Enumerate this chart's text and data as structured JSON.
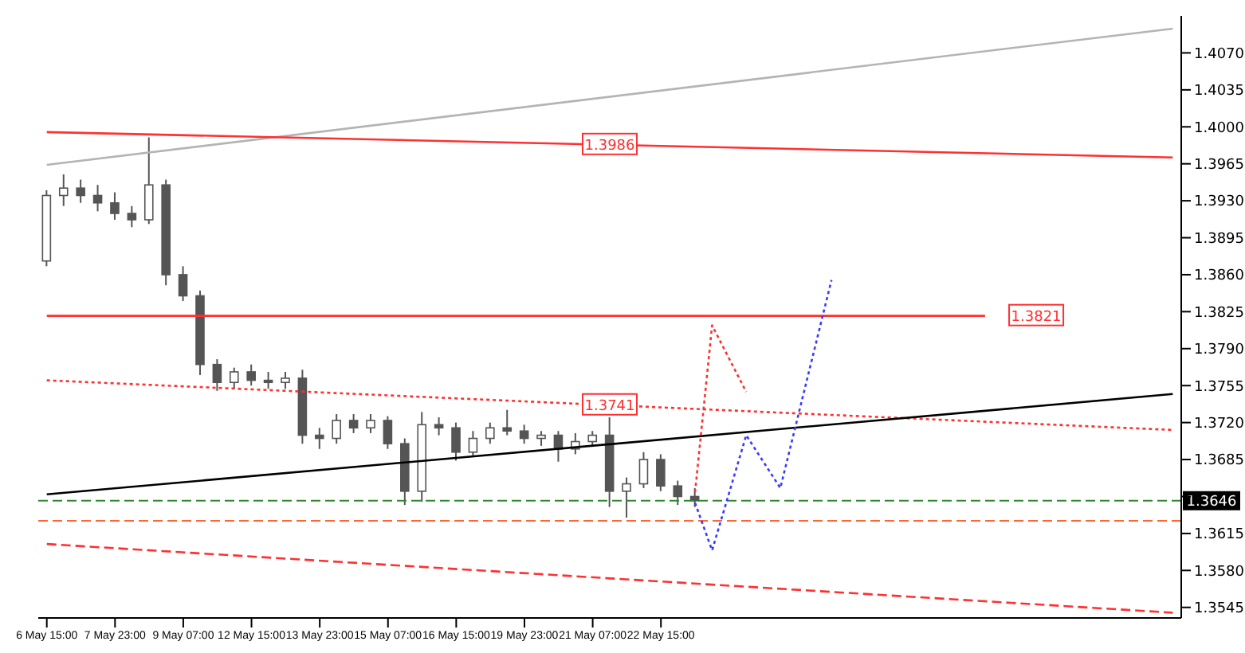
{
  "chart_data": {
    "type": "candlestick",
    "color": "#555555",
    "categories": [
      "6 May 15:00",
      null,
      null,
      null,
      "7 May 23:00",
      null,
      null,
      null,
      "9 May 07:00",
      null,
      null,
      null,
      "12 May 15:00",
      null,
      null,
      null,
      "13 May 23:00",
      null,
      null,
      null,
      "15 May 07:00",
      null,
      null,
      null,
      "16 May 15:00",
      null,
      null,
      null,
      "19 May 23:00",
      null,
      null,
      null,
      "21 May 07:00",
      null,
      null,
      null,
      "22 May 15:00",
      null,
      null,
      null,
      null,
      null,
      null,
      null,
      null,
      null,
      null,
      null,
      null,
      null,
      null,
      null,
      null,
      null,
      null,
      null,
      null,
      null,
      null,
      null,
      null,
      null,
      null,
      null,
      null,
      null,
      null
    ],
    "ohlc": [
      [
        1.3873,
        1.394,
        1.3868,
        1.3935
      ],
      [
        1.3935,
        1.3955,
        1.3925,
        1.3942
      ],
      [
        1.3942,
        1.395,
        1.3928,
        1.3935
      ],
      [
        1.3935,
        1.3945,
        1.392,
        1.3928
      ],
      [
        1.3928,
        1.3938,
        1.3912,
        1.3918
      ],
      [
        1.3918,
        1.3925,
        1.3905,
        1.3912
      ],
      [
        1.3912,
        1.399,
        1.3908,
        1.3945
      ],
      [
        1.3945,
        1.395,
        1.385,
        1.386
      ],
      [
        1.386,
        1.3868,
        1.3835,
        1.384
      ],
      [
        1.384,
        1.3845,
        1.3765,
        1.3775
      ],
      [
        1.3775,
        1.378,
        1.375,
        1.3758
      ],
      [
        1.3758,
        1.3772,
        1.3752,
        1.3768
      ],
      [
        1.3768,
        1.3775,
        1.3755,
        1.376
      ],
      [
        1.376,
        1.3768,
        1.3752,
        1.3758
      ],
      [
        1.3758,
        1.3768,
        1.3752,
        1.3762
      ],
      [
        1.3762,
        1.377,
        1.37,
        1.3708
      ],
      [
        1.3708,
        1.3715,
        1.3695,
        1.3705
      ],
      [
        1.3705,
        1.3728,
        1.37,
        1.3722
      ],
      [
        1.3722,
        1.3728,
        1.371,
        1.3715
      ],
      [
        1.3715,
        1.3728,
        1.371,
        1.3722
      ],
      [
        1.3722,
        1.3726,
        1.3695,
        1.37
      ],
      [
        1.37,
        1.3705,
        1.3642,
        1.3655
      ],
      [
        1.3655,
        1.373,
        1.3645,
        1.3718
      ],
      [
        1.3718,
        1.3725,
        1.3708,
        1.3715
      ],
      [
        1.3715,
        1.372,
        1.3684,
        1.3692
      ],
      [
        1.3692,
        1.3712,
        1.3688,
        1.3705
      ],
      [
        1.3705,
        1.372,
        1.37,
        1.3715
      ],
      [
        1.3715,
        1.3732,
        1.3708,
        1.3712
      ],
      [
        1.3712,
        1.3718,
        1.37,
        1.3705
      ],
      [
        1.3705,
        1.3712,
        1.3698,
        1.3708
      ],
      [
        1.3708,
        1.3712,
        1.3683,
        1.3695
      ],
      [
        1.3695,
        1.371,
        1.369,
        1.3702
      ],
      [
        1.3702,
        1.3712,
        1.3698,
        1.3708
      ],
      [
        1.3708,
        1.3725,
        1.364,
        1.3655
      ],
      [
        1.3655,
        1.3668,
        1.363,
        1.3662
      ],
      [
        1.3662,
        1.3692,
        1.3658,
        1.3685
      ],
      [
        1.3685,
        1.369,
        1.3655,
        1.366
      ],
      [
        1.366,
        1.3665,
        1.3642,
        1.365
      ],
      [
        1.365,
        1.3658,
        1.364,
        1.3646
      ],
      null,
      null,
      null,
      null,
      null,
      null,
      null,
      null,
      null,
      null,
      null,
      null,
      null,
      null,
      null,
      null,
      null,
      null,
      null,
      null,
      null,
      null,
      null,
      null,
      null,
      null,
      null,
      null
    ],
    "series": [
      {
        "type": "line",
        "color": "#b4b4b4",
        "values": [
          1.3964,
          null,
          null,
          null,
          null,
          null,
          null,
          null,
          null,
          null,
          null,
          null,
          null,
          null,
          null,
          null,
          null,
          null,
          null,
          null,
          null,
          null,
          null,
          null,
          null,
          null,
          null,
          null,
          null,
          null,
          null,
          null,
          null,
          null,
          null,
          null,
          null,
          null,
          null,
          null,
          null,
          null,
          null,
          null,
          null,
          null,
          null,
          null,
          null,
          null,
          null,
          null,
          null,
          null,
          null,
          null,
          null,
          null,
          null,
          null,
          null,
          null,
          null,
          null,
          null,
          null,
          1.4093
        ]
      },
      {
        "type": "line",
        "name": "1.3986",
        "color": "#ff3030",
        "values": [
          1.3995,
          null,
          null,
          null,
          null,
          null,
          null,
          null,
          null,
          null,
          null,
          null,
          null,
          null,
          null,
          null,
          null,
          null,
          null,
          null,
          null,
          null,
          null,
          null,
          null,
          null,
          null,
          null,
          null,
          null,
          null,
          null,
          null,
          null,
          null,
          null,
          null,
          null,
          null,
          null,
          null,
          null,
          null,
          null,
          null,
          null,
          null,
          null,
          null,
          null,
          null,
          null,
          null,
          null,
          null,
          null,
          null,
          null,
          null,
          null,
          null,
          null,
          null,
          null,
          null,
          null,
          1.3971
        ]
      },
      {
        "type": "line",
        "name": "1.3821",
        "color": "#ff3030",
        "values": [
          1.3821,
          null,
          null,
          null,
          null,
          null,
          null,
          null,
          null,
          null,
          null,
          null,
          null,
          null,
          null,
          null,
          null,
          null,
          null,
          null,
          null,
          null,
          null,
          null,
          null,
          null,
          null,
          null,
          null,
          null,
          null,
          null,
          null,
          null,
          null,
          null,
          null,
          null,
          null,
          null,
          null,
          null,
          null,
          null,
          null,
          null,
          null,
          null,
          null,
          null,
          null,
          null,
          null,
          null,
          null,
          1.3821,
          null,
          null,
          null,
          null,
          null,
          null,
          null,
          null,
          null,
          null,
          null
        ]
      },
      {
        "type": "line",
        "name": "1.3741",
        "color": "#ff3030",
        "line_style": "dotted",
        "values": [
          1.376,
          null,
          null,
          null,
          null,
          null,
          null,
          null,
          null,
          null,
          null,
          null,
          null,
          null,
          null,
          null,
          null,
          null,
          null,
          null,
          null,
          null,
          null,
          null,
          null,
          null,
          null,
          null,
          null,
          null,
          null,
          null,
          null,
          null,
          null,
          null,
          null,
          null,
          null,
          null,
          null,
          null,
          null,
          null,
          null,
          null,
          null,
          null,
          null,
          null,
          null,
          null,
          null,
          null,
          null,
          null,
          null,
          null,
          null,
          null,
          null,
          null,
          null,
          null,
          null,
          null,
          1.3713
        ]
      },
      {
        "type": "line",
        "color": "#000000",
        "values": [
          1.3652,
          null,
          null,
          null,
          null,
          null,
          null,
          null,
          null,
          null,
          null,
          null,
          null,
          null,
          null,
          null,
          null,
          null,
          null,
          null,
          null,
          null,
          null,
          null,
          null,
          null,
          null,
          null,
          null,
          null,
          null,
          null,
          null,
          null,
          null,
          null,
          null,
          null,
          null,
          null,
          null,
          null,
          null,
          null,
          null,
          null,
          null,
          null,
          null,
          null,
          null,
          null,
          null,
          null,
          null,
          null,
          null,
          null,
          null,
          null,
          null,
          null,
          null,
          null,
          null,
          null,
          1.3747
        ]
      },
      {
        "type": "line",
        "color": "#ff3030",
        "line_style": "dashed",
        "values": [
          1.3605,
          null,
          null,
          null,
          null,
          null,
          null,
          null,
          null,
          null,
          null,
          null,
          null,
          null,
          null,
          null,
          null,
          null,
          null,
          null,
          null,
          null,
          null,
          null,
          null,
          null,
          null,
          null,
          null,
          null,
          null,
          null,
          null,
          null,
          null,
          null,
          null,
          null,
          null,
          null,
          null,
          null,
          null,
          null,
          null,
          null,
          null,
          null,
          null,
          null,
          null,
          null,
          null,
          null,
          null,
          null,
          null,
          null,
          null,
          null,
          null,
          null,
          null,
          null,
          null,
          null,
          1.354
        ]
      },
      {
        "type": "line",
        "color": "#ff3030",
        "line_style": "dotted",
        "values": [
          null,
          null,
          null,
          null,
          null,
          null,
          null,
          null,
          null,
          null,
          null,
          null,
          null,
          null,
          null,
          null,
          null,
          null,
          null,
          null,
          null,
          null,
          null,
          null,
          null,
          null,
          null,
          null,
          null,
          null,
          null,
          null,
          null,
          null,
          null,
          null,
          null,
          null,
          1.3654,
          1.3812,
          null,
          1.3749,
          null,
          null,
          null,
          null,
          null,
          null,
          null,
          null,
          null,
          null,
          null,
          null,
          null,
          null,
          null,
          null,
          null,
          null,
          null,
          null,
          null,
          null,
          null,
          null,
          null
        ]
      },
      {
        "type": "line",
        "color": "#3a3aff",
        "line_style": "dotted",
        "values": [
          null,
          null,
          null,
          null,
          null,
          null,
          null,
          null,
          null,
          null,
          null,
          null,
          null,
          null,
          null,
          null,
          null,
          null,
          null,
          null,
          null,
          null,
          null,
          null,
          null,
          null,
          null,
          null,
          null,
          null,
          null,
          null,
          null,
          null,
          null,
          null,
          null,
          null,
          1.3644,
          1.3599,
          null,
          1.3708,
          null,
          1.3658,
          null,
          null,
          1.3855,
          null,
          null,
          null,
          null,
          null,
          null,
          null,
          null,
          null,
          null,
          null,
          null,
          null,
          null,
          null,
          null,
          null,
          null,
          null,
          null
        ]
      }
    ],
    "ref_lines": [
      {
        "axis": "y",
        "value": 1.3646,
        "label": "1.3646",
        "color": "#2e8b2e",
        "line_style": "dashed"
      },
      {
        "axis": "y",
        "value": 1.3627,
        "color": "#ff6633",
        "line_style": "dashed"
      }
    ],
    "ylim": [
      1.3535,
      1.4105
    ],
    "yticks": [
      {
        "value": 1.3545,
        "label": "1.3545"
      },
      {
        "value": 1.358,
        "label": "1.3580"
      },
      {
        "value": 1.3615,
        "label": "1.3615"
      },
      {
        "value": 1.365,
        "label": null
      },
      {
        "value": 1.3685,
        "label": "1.3685"
      },
      {
        "value": 1.372,
        "label": "1.3720"
      },
      {
        "value": 1.3755,
        "label": "1.3755"
      },
      {
        "value": 1.379,
        "label": "1.3790"
      },
      {
        "value": 1.3825,
        "label": "1.3825"
      },
      {
        "value": 1.386,
        "label": "1.3860"
      },
      {
        "value": 1.3895,
        "label": "1.3895"
      },
      {
        "value": 1.393,
        "label": "1.3930"
      },
      {
        "value": 1.3965,
        "label": "1.3965"
      },
      {
        "value": 1.4,
        "label": "1.4000"
      },
      {
        "value": 1.4035,
        "label": "1.4035"
      },
      {
        "value": 1.407,
        "label": "1.4070"
      }
    ]
  }
}
